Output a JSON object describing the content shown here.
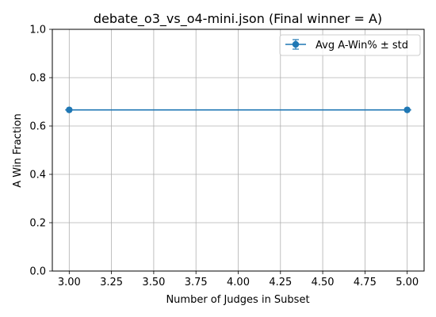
{
  "chart_data": {
    "type": "line",
    "title": "debate_o3_vs_o4-mini.json (Final winner = A)",
    "xlabel": "Number of Judges in Subset",
    "ylabel": "A Win Fraction",
    "xlim": [
      2.9,
      5.1
    ],
    "ylim": [
      0.0,
      1.0
    ],
    "xticks": [
      3.0,
      3.25,
      3.5,
      3.75,
      4.0,
      4.25,
      4.5,
      4.75,
      5.0
    ],
    "xtick_labels": [
      "3.00",
      "3.25",
      "3.50",
      "3.75",
      "4.00",
      "4.25",
      "4.50",
      "4.75",
      "5.00"
    ],
    "yticks": [
      0.0,
      0.2,
      0.4,
      0.6,
      0.8,
      1.0
    ],
    "ytick_labels": [
      "0.0",
      "0.2",
      "0.4",
      "0.6",
      "0.8",
      "1.0"
    ],
    "grid": true,
    "legend_position": "top-right",
    "series": [
      {
        "name": "Avg A-Win% ± std",
        "x": [
          3,
          5
        ],
        "y": [
          0.6667,
          0.6667
        ],
        "std": [
          0,
          0
        ],
        "color": "#1f77b4",
        "marker": "circle"
      }
    ]
  }
}
